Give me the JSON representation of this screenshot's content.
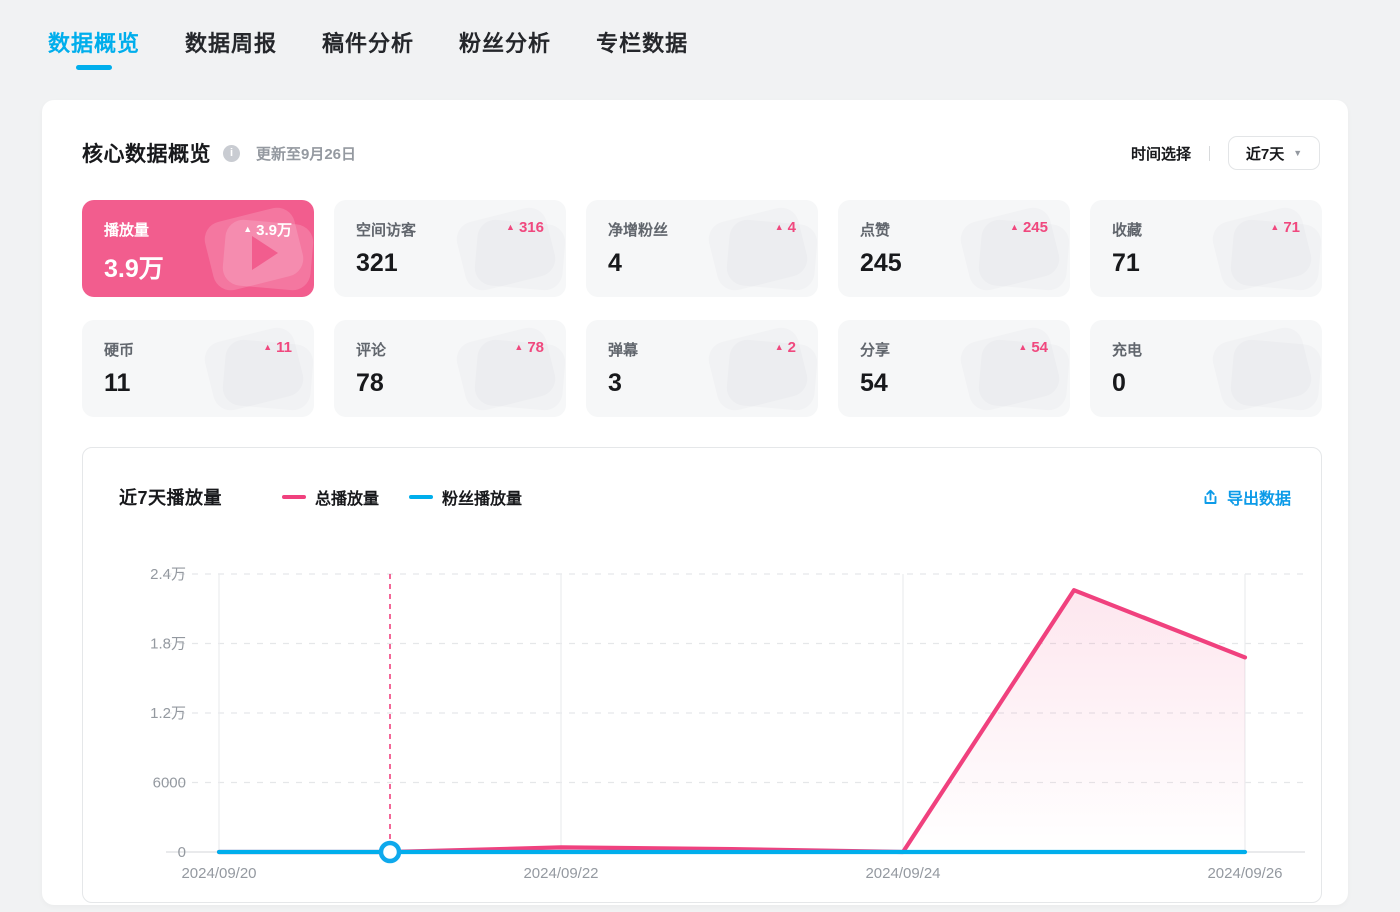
{
  "tabs": [
    {
      "label": "数据概览",
      "active": true
    },
    {
      "label": "数据周报",
      "active": false
    },
    {
      "label": "稿件分析",
      "active": false
    },
    {
      "label": "粉丝分析",
      "active": false
    },
    {
      "label": "专栏数据",
      "active": false
    }
  ],
  "overview": {
    "title": "核心数据概览",
    "updated_text": "更新至9月26日",
    "time_select_label": "时间选择",
    "time_range_value": "近7天"
  },
  "stats": [
    {
      "label": "播放量",
      "value": "3.9万",
      "delta": "3.9万",
      "highlighted": true,
      "icon": "play-icon"
    },
    {
      "label": "空间访客",
      "value": "321",
      "delta": "316",
      "highlighted": false,
      "icon": "visitor-icon"
    },
    {
      "label": "净增粉丝",
      "value": "4",
      "delta": "4",
      "highlighted": false,
      "icon": "fans-icon"
    },
    {
      "label": "点赞",
      "value": "245",
      "delta": "245",
      "highlighted": false,
      "icon": "thumbs-up-icon"
    },
    {
      "label": "收藏",
      "value": "71",
      "delta": "71",
      "highlighted": false,
      "icon": "star-icon"
    },
    {
      "label": "硬币",
      "value": "11",
      "delta": "11",
      "highlighted": false,
      "icon": "coin-icon"
    },
    {
      "label": "评论",
      "value": "78",
      "delta": "78",
      "highlighted": false,
      "icon": "comment-icon"
    },
    {
      "label": "弹幕",
      "value": "3",
      "delta": "2",
      "highlighted": false,
      "icon": "danmaku-icon"
    },
    {
      "label": "分享",
      "value": "54",
      "delta": "54",
      "highlighted": false,
      "icon": "share-icon"
    },
    {
      "label": "充电",
      "value": "0",
      "delta": null,
      "highlighted": false,
      "icon": "lightning-icon"
    }
  ],
  "chart": {
    "title": "近7天播放量",
    "export_label": "导出数据"
  },
  "chart_data": {
    "type": "line",
    "title": "近7天播放量",
    "x": [
      "2024/09/20",
      "2024/09/21",
      "2024/09/22",
      "2024/09/23",
      "2024/09/24",
      "2024/09/25",
      "2024/09/26"
    ],
    "x_axis_labels_shown": [
      "2024/09/20",
      "2024/09/22",
      "2024/09/24",
      "2024/09/26"
    ],
    "series": [
      {
        "name": "总播放量",
        "color": "#F0417E",
        "area_fill": true,
        "values": [
          0,
          0,
          400,
          250,
          0,
          22600,
          16800
        ]
      },
      {
        "name": "粉丝播放量",
        "color": "#00AEEC",
        "area_fill": false,
        "values": [
          0,
          0,
          0,
          0,
          0,
          0,
          0
        ]
      }
    ],
    "ylim": [
      0,
      24000
    ],
    "yticks": [
      {
        "value": 0,
        "label": "0"
      },
      {
        "value": 6000,
        "label": "6000"
      },
      {
        "value": 12000,
        "label": "1.2万"
      },
      {
        "value": 18000,
        "label": "1.8万"
      },
      {
        "value": 24000,
        "label": "2.4万"
      }
    ],
    "grid": "horizontal-dashed, vertical-solid-at-labeled-ticks",
    "legend_position": "top",
    "hover_marker": {
      "x": "2024/09/21",
      "series": "粉丝播放量",
      "value": 0,
      "guide_line_color": "#F0417E",
      "marker_stroke": "#0FA9EC"
    }
  },
  "colors": {
    "accent_blue": "#00AEEC",
    "accent_pink": "#F25D8E",
    "delta_pink": "#F0487E",
    "line_pink": "#F0417E",
    "export_blue": "#0D9BE8",
    "page_bg": "#F1F2F3",
    "card_bg": "#FFFFFF",
    "stat_bg": "#F6F7F8",
    "axis_text": "#9499A0",
    "grid_line": "#E5E7E9"
  }
}
